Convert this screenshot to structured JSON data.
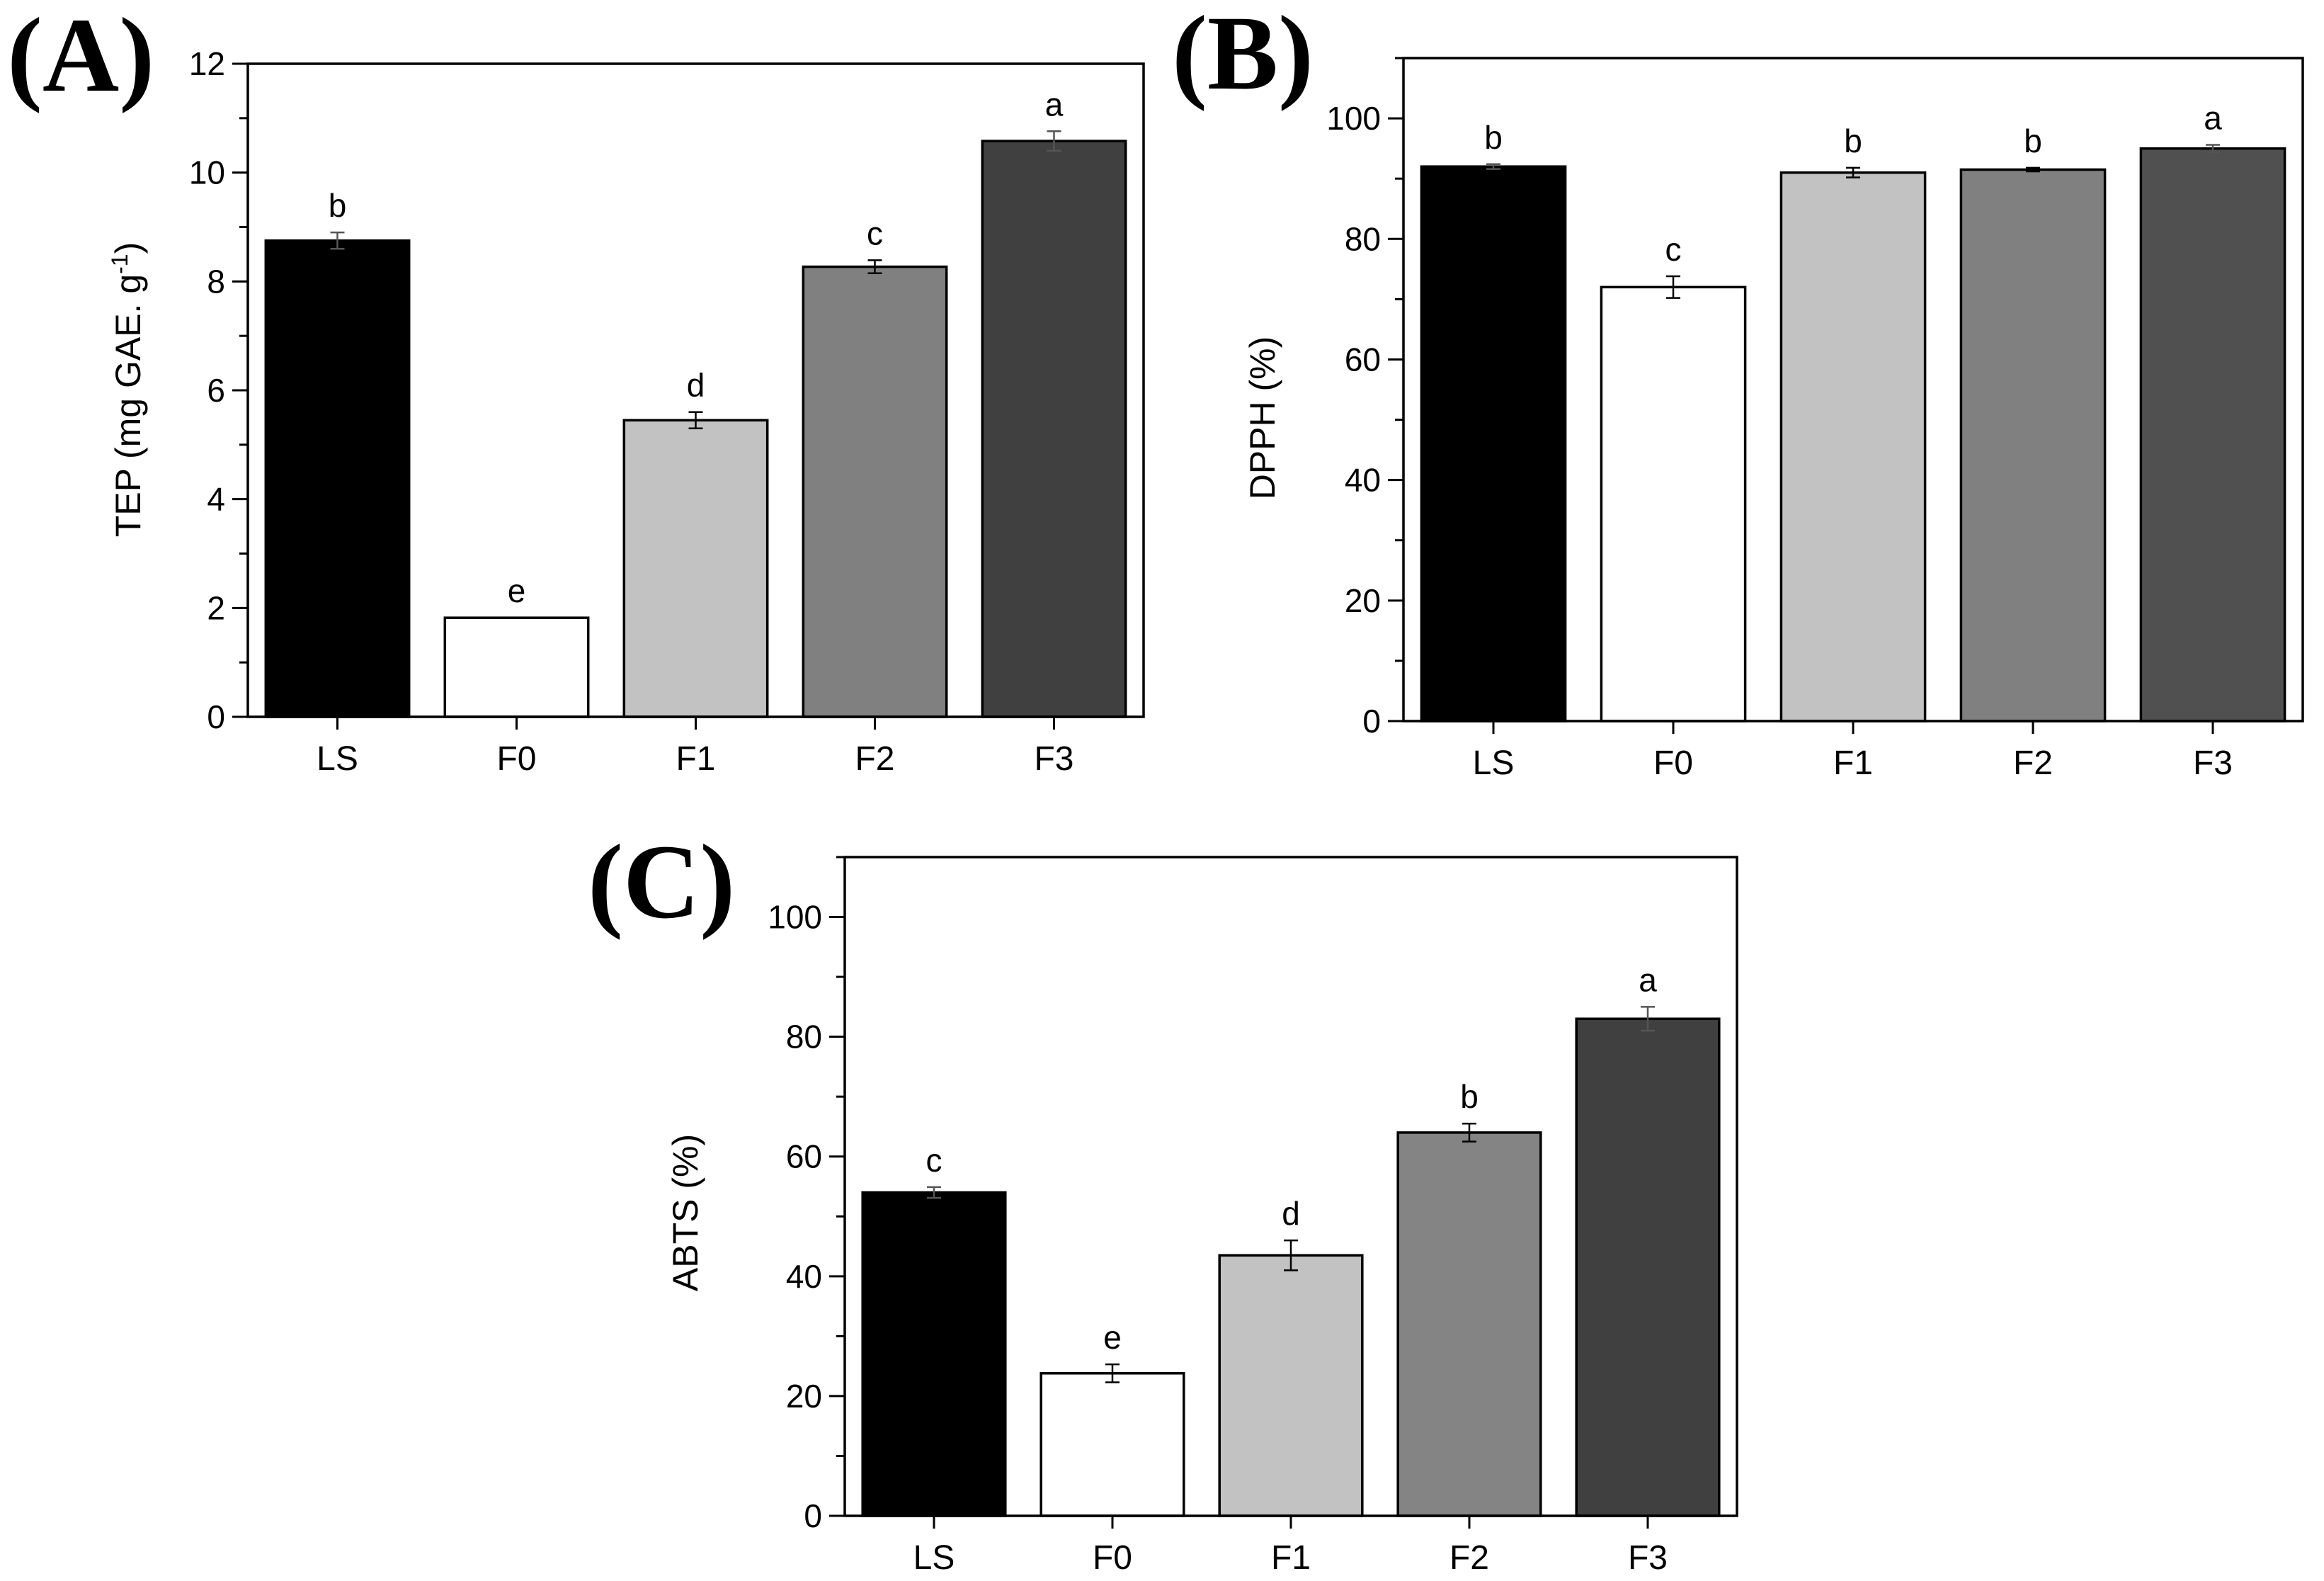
{
  "chart_data": [
    {
      "panel_label": "(A)",
      "type": "bar",
      "categories": [
        "LS",
        "F0",
        "F1",
        "F2",
        "F3"
      ],
      "values": [
        8.75,
        1.82,
        5.45,
        8.27,
        10.58
      ],
      "errors": [
        0.15,
        0.0,
        0.15,
        0.12,
        0.18
      ],
      "significance": [
        "b",
        "e",
        "d",
        "c",
        "a"
      ],
      "bar_colors": [
        "#000000",
        "#ffffff",
        "#c2c2c2",
        "#808080",
        "#404040"
      ],
      "ylabel_main": "TEP (mg GAE. g",
      "ylabel_sup": "-1",
      "ylabel_end": ")",
      "ylim": [
        0,
        12
      ],
      "yticks": [
        0,
        2,
        4,
        6,
        8,
        10,
        12
      ],
      "xlabel": "",
      "grid": false
    },
    {
      "panel_label": "(B)",
      "type": "bar",
      "categories": [
        "LS",
        "F0",
        "F1",
        "F2",
        "F3"
      ],
      "values": [
        92.0,
        72.0,
        91.0,
        91.5,
        95.0
      ],
      "errors": [
        0.4,
        1.8,
        0.8,
        0.3,
        0.6
      ],
      "significance": [
        "b",
        "c",
        "b",
        "b",
        "a"
      ],
      "bar_colors": [
        "#000000",
        "#ffffff",
        "#c2c2c2",
        "#808080",
        "#505050"
      ],
      "ylabel_main": "DPPH (%)",
      "ylabel_sup": "",
      "ylabel_end": "",
      "ylim": [
        0,
        110
      ],
      "yticks": [
        0,
        20,
        40,
        60,
        80,
        100
      ],
      "xlabel": "",
      "grid": false
    },
    {
      "panel_label": "(C)",
      "type": "bar",
      "categories": [
        "LS",
        "F0",
        "F1",
        "F2",
        "F3"
      ],
      "values": [
        54.0,
        23.8,
        43.5,
        64.0,
        83.0
      ],
      "errors": [
        0.9,
        1.5,
        2.5,
        1.5,
        2.0
      ],
      "significance": [
        "c",
        "e",
        "d",
        "b",
        "a"
      ],
      "bar_colors": [
        "#000000",
        "#ffffff",
        "#c2c2c2",
        "#848484",
        "#404040"
      ],
      "ylabel_main": "ABTS (%)",
      "ylabel_sup": "",
      "ylabel_end": "",
      "ylim": [
        0,
        110
      ],
      "yticks": [
        0,
        20,
        40,
        60,
        80,
        100
      ],
      "xlabel": "",
      "grid": false
    }
  ]
}
